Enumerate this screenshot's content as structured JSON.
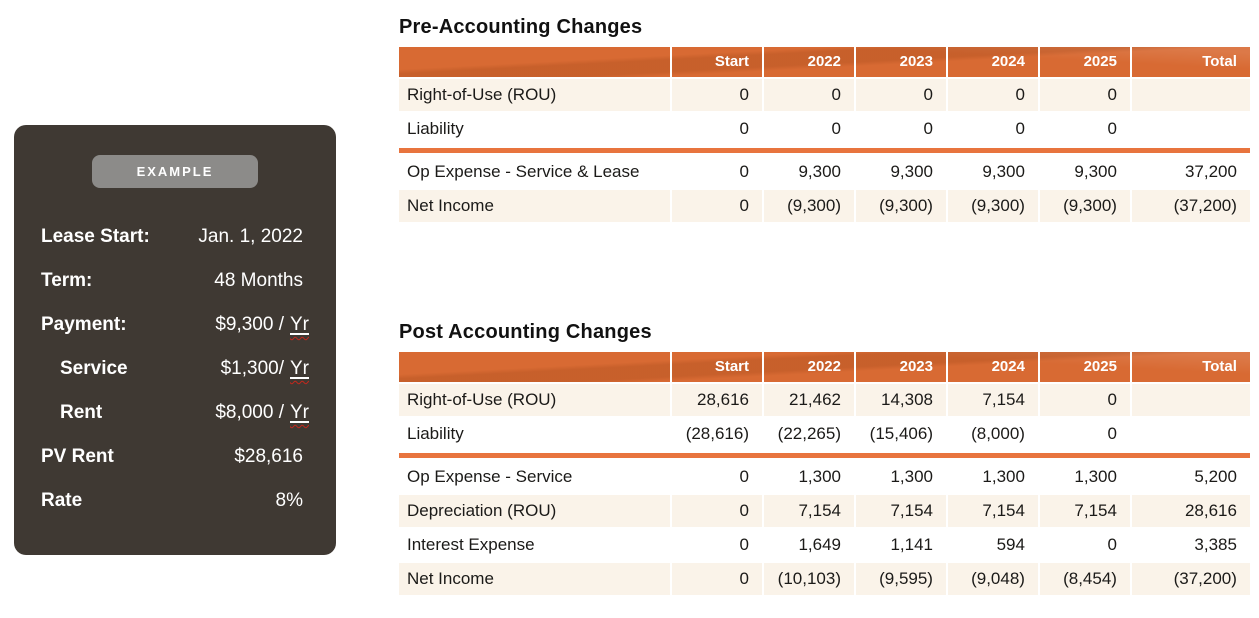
{
  "colors": {
    "header_orange": "#d86a33",
    "divider_orange": "#e8743e",
    "row_cream": "#faf3e9",
    "card_background": "#3f3933",
    "badge_gray": "#8c8b89",
    "text_dark": "#1b1a18"
  },
  "example_card": {
    "badge": "EXAMPLE",
    "rows": [
      {
        "label": "Lease Start:",
        "value": "Jan. 1, 2022",
        "unit": ""
      },
      {
        "label": "Term:",
        "value": "48 Months",
        "unit": ""
      },
      {
        "label": "Payment:",
        "value": "$9,300 /",
        "unit": "Yr"
      },
      {
        "label": "Service",
        "value": "$1,300/",
        "unit": "Yr"
      },
      {
        "label": "Rent",
        "value": "$8,000 /",
        "unit": "Yr"
      },
      {
        "label": "PV Rent",
        "value": "$28,616",
        "unit": ""
      },
      {
        "label": "Rate",
        "value": "8%",
        "unit": ""
      }
    ]
  },
  "tables": [
    {
      "title": "Pre-Accounting Changes",
      "columns": [
        "",
        "Start",
        "2022",
        "2023",
        "2024",
        "2025",
        "Total"
      ],
      "rows": [
        {
          "label": "Right-of-Use (ROU)",
          "values": [
            "0",
            "0",
            "0",
            "0",
            "0",
            ""
          ]
        },
        {
          "label": "Liability",
          "values": [
            "0",
            "0",
            "0",
            "0",
            "0",
            ""
          ]
        },
        {
          "label": "Op Expense - Service & Lease",
          "values": [
            "0",
            "9,300",
            "9,300",
            "9,300",
            "9,300",
            "37,200"
          ]
        },
        {
          "label": "Net Income",
          "values": [
            "0",
            "(9,300)",
            "(9,300)",
            "(9,300)",
            "(9,300)",
            "(37,200)"
          ]
        }
      ]
    },
    {
      "title": "Post Accounting Changes",
      "columns": [
        "",
        "Start",
        "2022",
        "2023",
        "2024",
        "2025",
        "Total"
      ],
      "rows": [
        {
          "label": "Right-of-Use (ROU)",
          "values": [
            "28,616",
            "21,462",
            "14,308",
            "7,154",
            "0",
            ""
          ]
        },
        {
          "label": "Liability",
          "values": [
            "(28,616)",
            "(22,265)",
            "(15,406)",
            "(8,000)",
            "0",
            ""
          ]
        },
        {
          "label": "Op Expense - Service",
          "values": [
            "0",
            "1,300",
            "1,300",
            "1,300",
            "1,300",
            "5,200"
          ]
        },
        {
          "label": "Depreciation (ROU)",
          "values": [
            "0",
            "7,154",
            "7,154",
            "7,154",
            "7,154",
            "28,616"
          ]
        },
        {
          "label": "Interest Expense",
          "values": [
            "0",
            "1,649",
            "1,141",
            "594",
            "0",
            "3,385"
          ]
        },
        {
          "label": "Net Income",
          "values": [
            "0",
            "(10,103)",
            "(9,595)",
            "(9,048)",
            "(8,454)",
            "(37,200)"
          ]
        }
      ]
    }
  ]
}
